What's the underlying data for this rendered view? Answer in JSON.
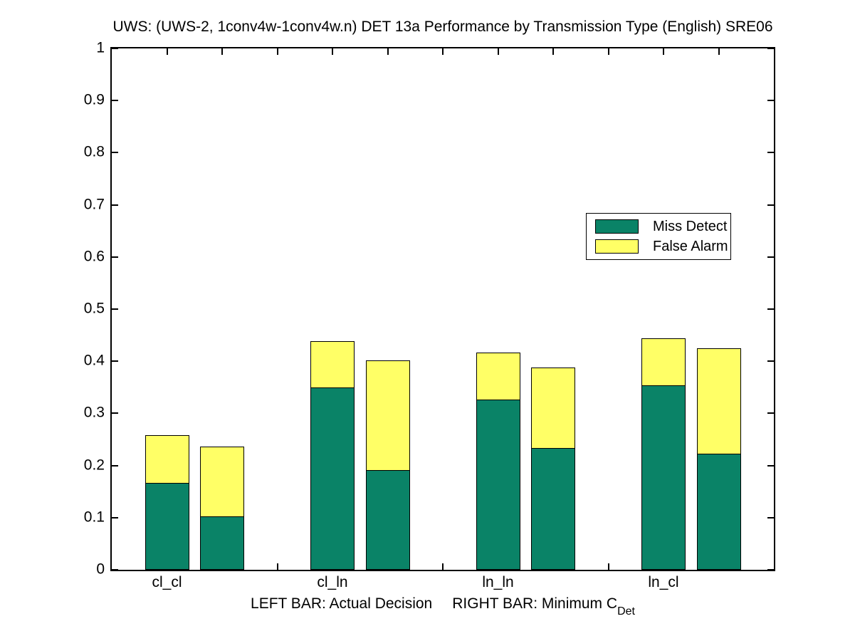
{
  "window": {
    "background": "#ffffff"
  },
  "chart_data": {
    "type": "bar",
    "stacked": true,
    "title": "UWS: (UWS-2, 1conv4w-1conv4w.n) DET 13a Performance by Transmission Type (English) SRE06",
    "xlabel": {
      "left": "LEFT BAR: Actual Decision",
      "right": "RIGHT BAR: Minimum C",
      "subscript": "Det"
    },
    "categories": [
      "cl_cl",
      "cl_ln",
      "ln_ln",
      "ln_cl"
    ],
    "category_label_positions": [
      1,
      4,
      7,
      10
    ],
    "axes": {
      "xlim": [
        0,
        12
      ],
      "ylim": [
        0,
        1
      ],
      "xticks": [
        1,
        2,
        3,
        4,
        5,
        6,
        7,
        8,
        9,
        10,
        11
      ],
      "yticks": [
        0,
        0.1,
        0.2,
        0.3,
        0.4,
        0.5,
        0.6,
        0.7,
        0.8,
        0.9,
        1
      ],
      "ytick_labels": [
        "0",
        "0.1",
        "0.2",
        "0.3",
        "0.4",
        "0.5",
        "0.6",
        "0.7",
        "0.8",
        "0.9",
        "1"
      ],
      "grid": false,
      "box": true
    },
    "colors": {
      "miss_detect": "#0A8367",
      "false_alarm": "#FFFF66",
      "edge": "#000000"
    },
    "bar_width_units": 0.8,
    "bars": [
      {
        "category": "cl_cl",
        "bar": "actual_decision",
        "x": 1,
        "miss_detect": 0.167,
        "false_alarm": 0.091,
        "total": 0.258
      },
      {
        "category": "cl_cl",
        "bar": "minimum_cdet",
        "x": 2,
        "miss_detect": 0.102,
        "false_alarm": 0.135,
        "total": 0.237
      },
      {
        "category": "cl_ln",
        "bar": "actual_decision",
        "x": 4,
        "miss_detect": 0.35,
        "false_alarm": 0.089,
        "total": 0.439
      },
      {
        "category": "cl_ln",
        "bar": "minimum_cdet",
        "x": 5,
        "miss_detect": 0.191,
        "false_alarm": 0.211,
        "total": 0.402
      },
      {
        "category": "ln_ln",
        "bar": "actual_decision",
        "x": 7,
        "miss_detect": 0.326,
        "false_alarm": 0.091,
        "total": 0.417
      },
      {
        "category": "ln_ln",
        "bar": "minimum_cdet",
        "x": 8,
        "miss_detect": 0.233,
        "false_alarm": 0.155,
        "total": 0.388
      },
      {
        "category": "ln_cl",
        "bar": "actual_decision",
        "x": 10,
        "miss_detect": 0.354,
        "false_alarm": 0.09,
        "total": 0.444
      },
      {
        "category": "ln_cl",
        "bar": "minimum_cdet",
        "x": 11,
        "miss_detect": 0.222,
        "false_alarm": 0.203,
        "total": 0.425
      }
    ],
    "legend": {
      "position": "inside-right",
      "entries": [
        {
          "label": "Miss Detect",
          "color": "#0A8367"
        },
        {
          "label": "False Alarm",
          "color": "#FFFF66"
        }
      ]
    }
  }
}
